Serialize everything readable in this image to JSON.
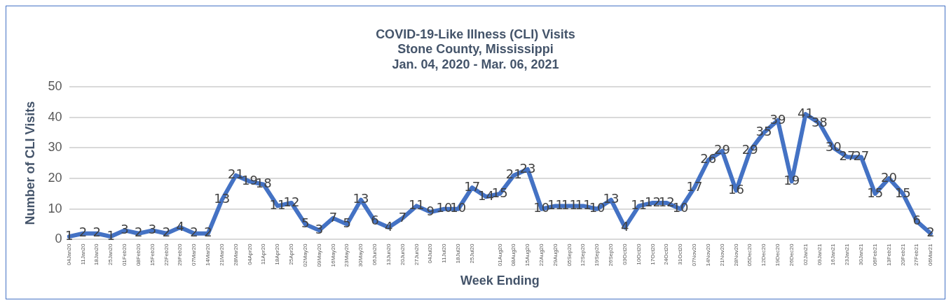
{
  "chart_data": {
    "type": "line",
    "title": "COVID-19-Like Illness (CLI) Visits\nStone County, Mississippi\nJan. 04, 2020 - Mar. 06, 2021",
    "xlabel": "Week Ending",
    "ylabel": "Number of CLI Visits",
    "categories": [
      "04Jan20",
      "11Jan20",
      "18Jan20",
      "25Jan20",
      "01Feb20",
      "08Feb20",
      "15Feb20",
      "22Feb20",
      "29Feb20",
      "07Mar20",
      "14Mar20",
      "21Mar20",
      "28Mar20",
      "04Apr20",
      "11Apr20",
      "18Apr20",
      "25Apr20",
      "02May20",
      "09May20",
      "16May20",
      "23May20",
      "30May20",
      "06Jun20",
      "13Jun20",
      "20Jun20",
      "27Jun20",
      "04Jul20",
      "11Jul20",
      "18Jul20",
      "25Jul20",
      null,
      "01Aug20",
      "08Aug20",
      "15Aug20",
      "22Aug20",
      "29Aug20",
      "05Sep20",
      "12Sep20",
      "19Sep20",
      "26Sep20",
      "03Oct20",
      "10Oct20",
      "17Oct20",
      "24Oct20",
      "31Oct20",
      "07Nov20",
      "14Nov20",
      "21Nov20",
      "28Nov20",
      "05Dec20",
      "12Dec20",
      "19Dec20",
      "26Dec20",
      "02Jan21",
      "09Jan21",
      "16Jan21",
      "23Jan21",
      "30Jan21",
      "06Feb21",
      "13Feb21",
      "20Feb21",
      "27Feb21",
      "06Mar21"
    ],
    "series": [
      {
        "color": "#4472c4",
        "values": [
          1,
          2,
          2,
          1,
          3,
          2,
          3,
          2,
          4,
          2,
          2,
          13,
          21,
          19,
          18,
          11,
          12,
          5,
          3,
          7,
          5,
          13,
          6,
          4,
          7,
          11,
          9,
          10,
          10,
          17,
          14,
          15,
          21,
          23,
          10,
          11,
          11,
          11,
          10,
          13,
          4,
          11,
          12,
          12,
          10,
          17,
          26,
          29,
          16,
          29,
          35,
          39,
          19,
          41,
          38,
          30,
          27,
          27,
          15,
          20,
          15,
          6,
          2
        ]
      }
    ],
    "ylim": [
      0,
      50
    ],
    "yticks": [
      0,
      10,
      20,
      30,
      40,
      50
    ],
    "grid": "y",
    "legend": false,
    "marker": "none",
    "line_style": "solid",
    "data_labels": true
  }
}
